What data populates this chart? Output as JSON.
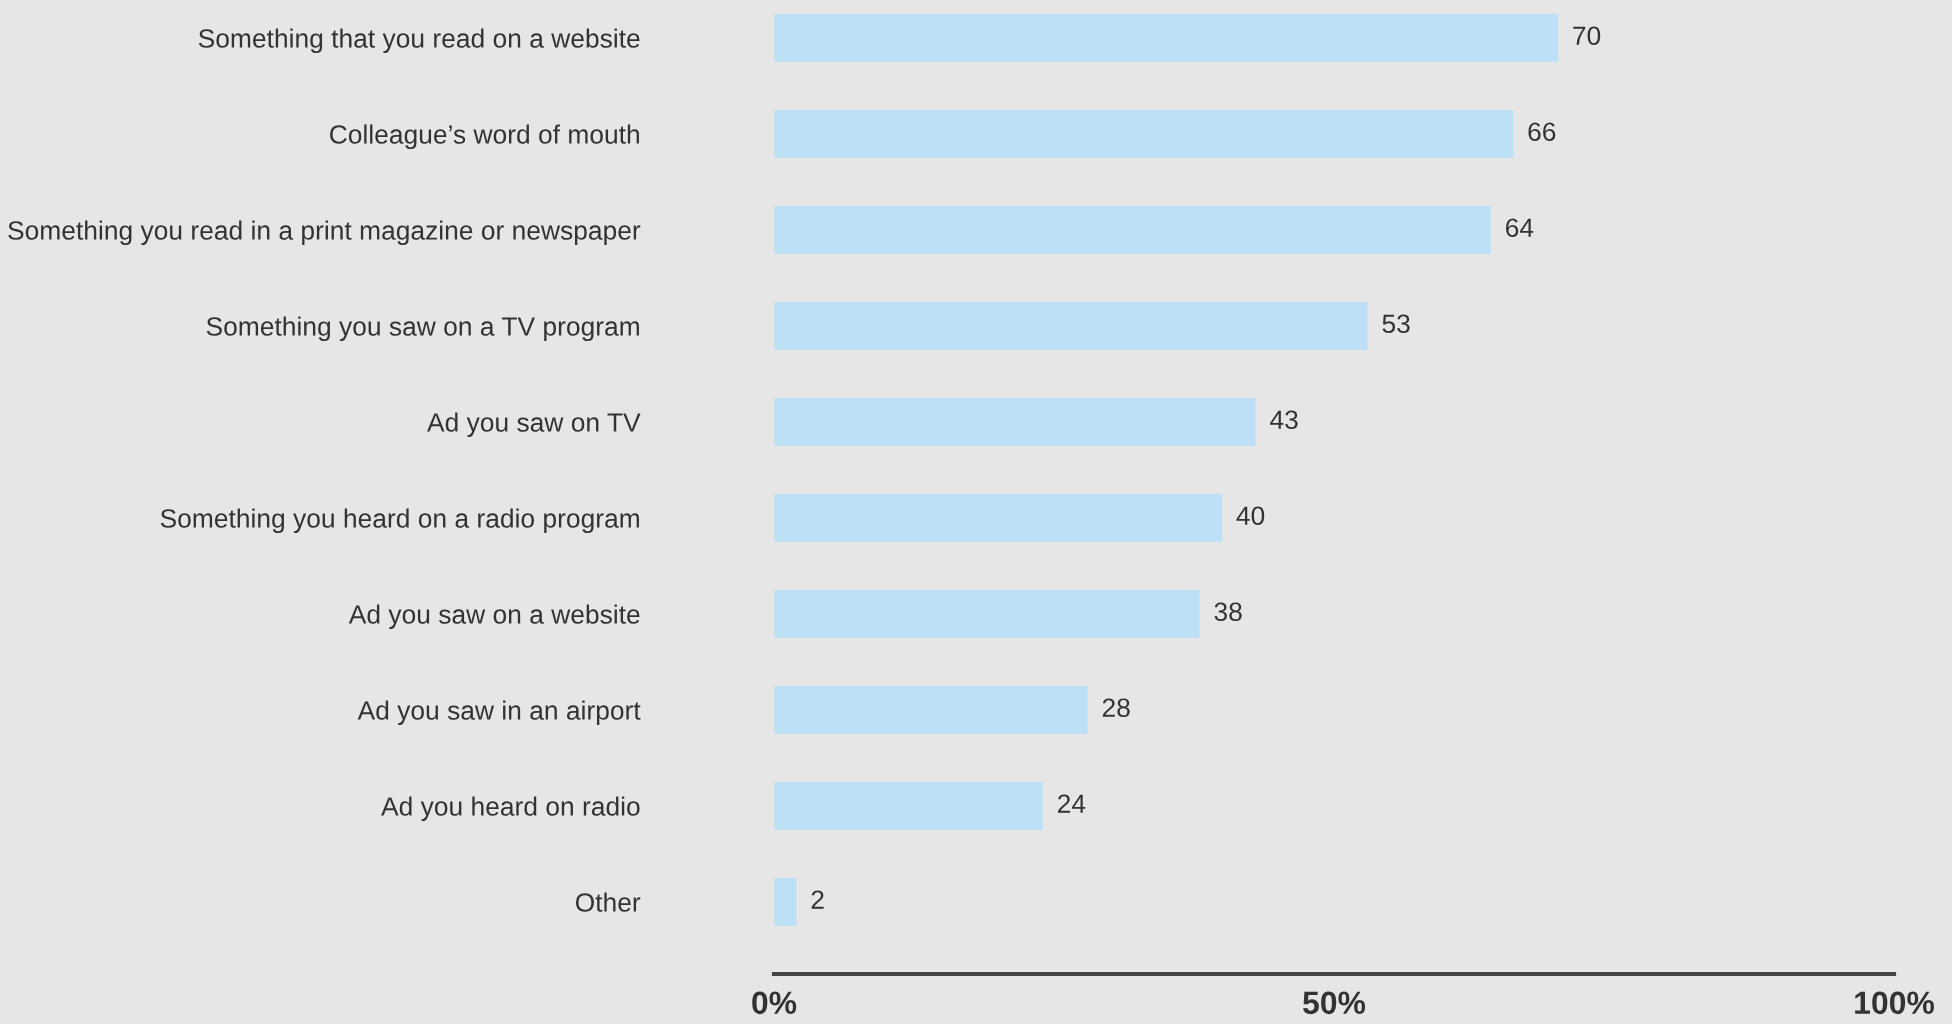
{
  "chart_data": {
    "type": "bar",
    "orientation": "horizontal",
    "categories": [
      "Something that you read on a website",
      "Colleague’s word of mouth",
      "Something you read in a print magazine or newspaper",
      "Something you saw on a TV program",
      "Ad you saw on TV",
      "Something you heard on a radio program",
      "Ad you saw on a website",
      "Ad you saw in an airport",
      "Ad you heard on radio",
      "Other"
    ],
    "values": [
      70,
      66,
      64,
      53,
      43,
      40,
      38,
      28,
      24,
      2
    ],
    "color": "#bde0f7",
    "xlim": [
      0,
      100
    ],
    "xticks": [
      {
        "value": 0,
        "label": "0%"
      },
      {
        "value": 50,
        "label": "50%"
      },
      {
        "value": 100,
        "label": "100%"
      }
    ],
    "data_labels": true,
    "grid": false,
    "legend": false
  }
}
